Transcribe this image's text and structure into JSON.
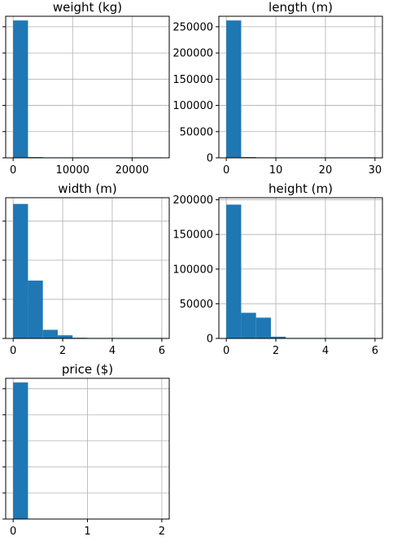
{
  "colors": {
    "bar": "#1f77b4",
    "grid": "#b0b0b0",
    "axis": "#000000",
    "background": "#ffffff"
  },
  "chart_data": [
    {
      "type": "bar",
      "name": "hist-weight",
      "title": "weight (kg)",
      "bin_edges": [
        0,
        2500,
        5000,
        7500,
        10000,
        12500,
        15000,
        17500,
        20000,
        22500,
        25000
      ],
      "counts": [
        262000,
        1400,
        200,
        40,
        15,
        8,
        4,
        2,
        1,
        1
      ],
      "xlim": [
        -1250,
        26250
      ],
      "ylim": [
        0,
        270000
      ],
      "xticks": [
        0,
        10000,
        20000
      ],
      "xtick_labels": [
        "0",
        "10000",
        "20000"
      ],
      "yticks": [
        0,
        50000,
        100000,
        150000,
        200000,
        250000
      ],
      "ytick_labels": [],
      "grid": true
    },
    {
      "type": "bar",
      "name": "hist-length",
      "title": "length (m)",
      "bin_edges": [
        0,
        3,
        6,
        9,
        12,
        15,
        18,
        21,
        24,
        27,
        30
      ],
      "counts": [
        262000,
        1500,
        150,
        40,
        15,
        8,
        4,
        2,
        1,
        1
      ],
      "xlim": [
        -1.5,
        31.5
      ],
      "ylim": [
        0,
        270000
      ],
      "xticks": [
        0,
        10,
        20,
        30
      ],
      "xtick_labels": [
        "0",
        "10",
        "20",
        "30"
      ],
      "yticks": [
        0,
        50000,
        100000,
        150000,
        200000,
        250000
      ],
      "ytick_labels": [
        "0",
        "50000",
        "100000",
        "150000",
        "200000",
        "250000"
      ],
      "grid": true
    },
    {
      "type": "bar",
      "name": "hist-width",
      "title": "width (m)",
      "bin_edges": [
        0,
        0.6,
        1.2,
        1.8,
        2.4,
        3.0,
        3.6,
        4.2,
        4.8,
        5.4,
        6.0
      ],
      "counts": [
        172000,
        74000,
        11000,
        4000,
        900,
        300,
        150,
        80,
        40,
        20
      ],
      "xlim": [
        -0.3,
        6.3
      ],
      "ylim": [
        0,
        180000
      ],
      "xticks": [
        0,
        2,
        4,
        6
      ],
      "xtick_labels": [
        "0",
        "2",
        "4",
        "6"
      ],
      "yticks": [
        0,
        50000,
        100000,
        150000
      ],
      "ytick_labels": [],
      "grid": true
    },
    {
      "type": "bar",
      "name": "hist-height",
      "title": "height (m)",
      "bin_edges": [
        0,
        0.6,
        1.2,
        1.8,
        2.4,
        3.0,
        3.6,
        4.2,
        4.8,
        5.4,
        6.0
      ],
      "counts": [
        193000,
        37000,
        30000,
        2500,
        500,
        200,
        100,
        50,
        30,
        20
      ],
      "xlim": [
        -0.3,
        6.3
      ],
      "ylim": [
        0,
        203000
      ],
      "xticks": [
        0,
        2,
        4,
        6
      ],
      "xtick_labels": [
        "0",
        "2",
        "4",
        "6"
      ],
      "yticks": [
        0,
        50000,
        100000,
        150000,
        200000
      ],
      "ytick_labels": [
        "0",
        "50000",
        "100000",
        "150000",
        "200000"
      ],
      "grid": true
    },
    {
      "type": "bar",
      "name": "hist-price",
      "title": "price ($)",
      "bin_edges": [
        0,
        0.2,
        0.4,
        0.6,
        0.8,
        1.0,
        1.2,
        1.4,
        1.6,
        1.8,
        2.0
      ],
      "counts": [
        262000,
        0,
        0,
        0,
        0,
        0,
        0,
        0,
        0,
        0
      ],
      "xlim": [
        -0.1,
        2.1
      ],
      "ylim": [
        0,
        270000
      ],
      "xticks": [
        0,
        1,
        2
      ],
      "xtick_labels": [
        "0",
        "1",
        "2"
      ],
      "yticks": [
        0,
        50000,
        100000,
        150000,
        200000,
        250000
      ],
      "ytick_labels": [],
      "grid": true
    }
  ]
}
